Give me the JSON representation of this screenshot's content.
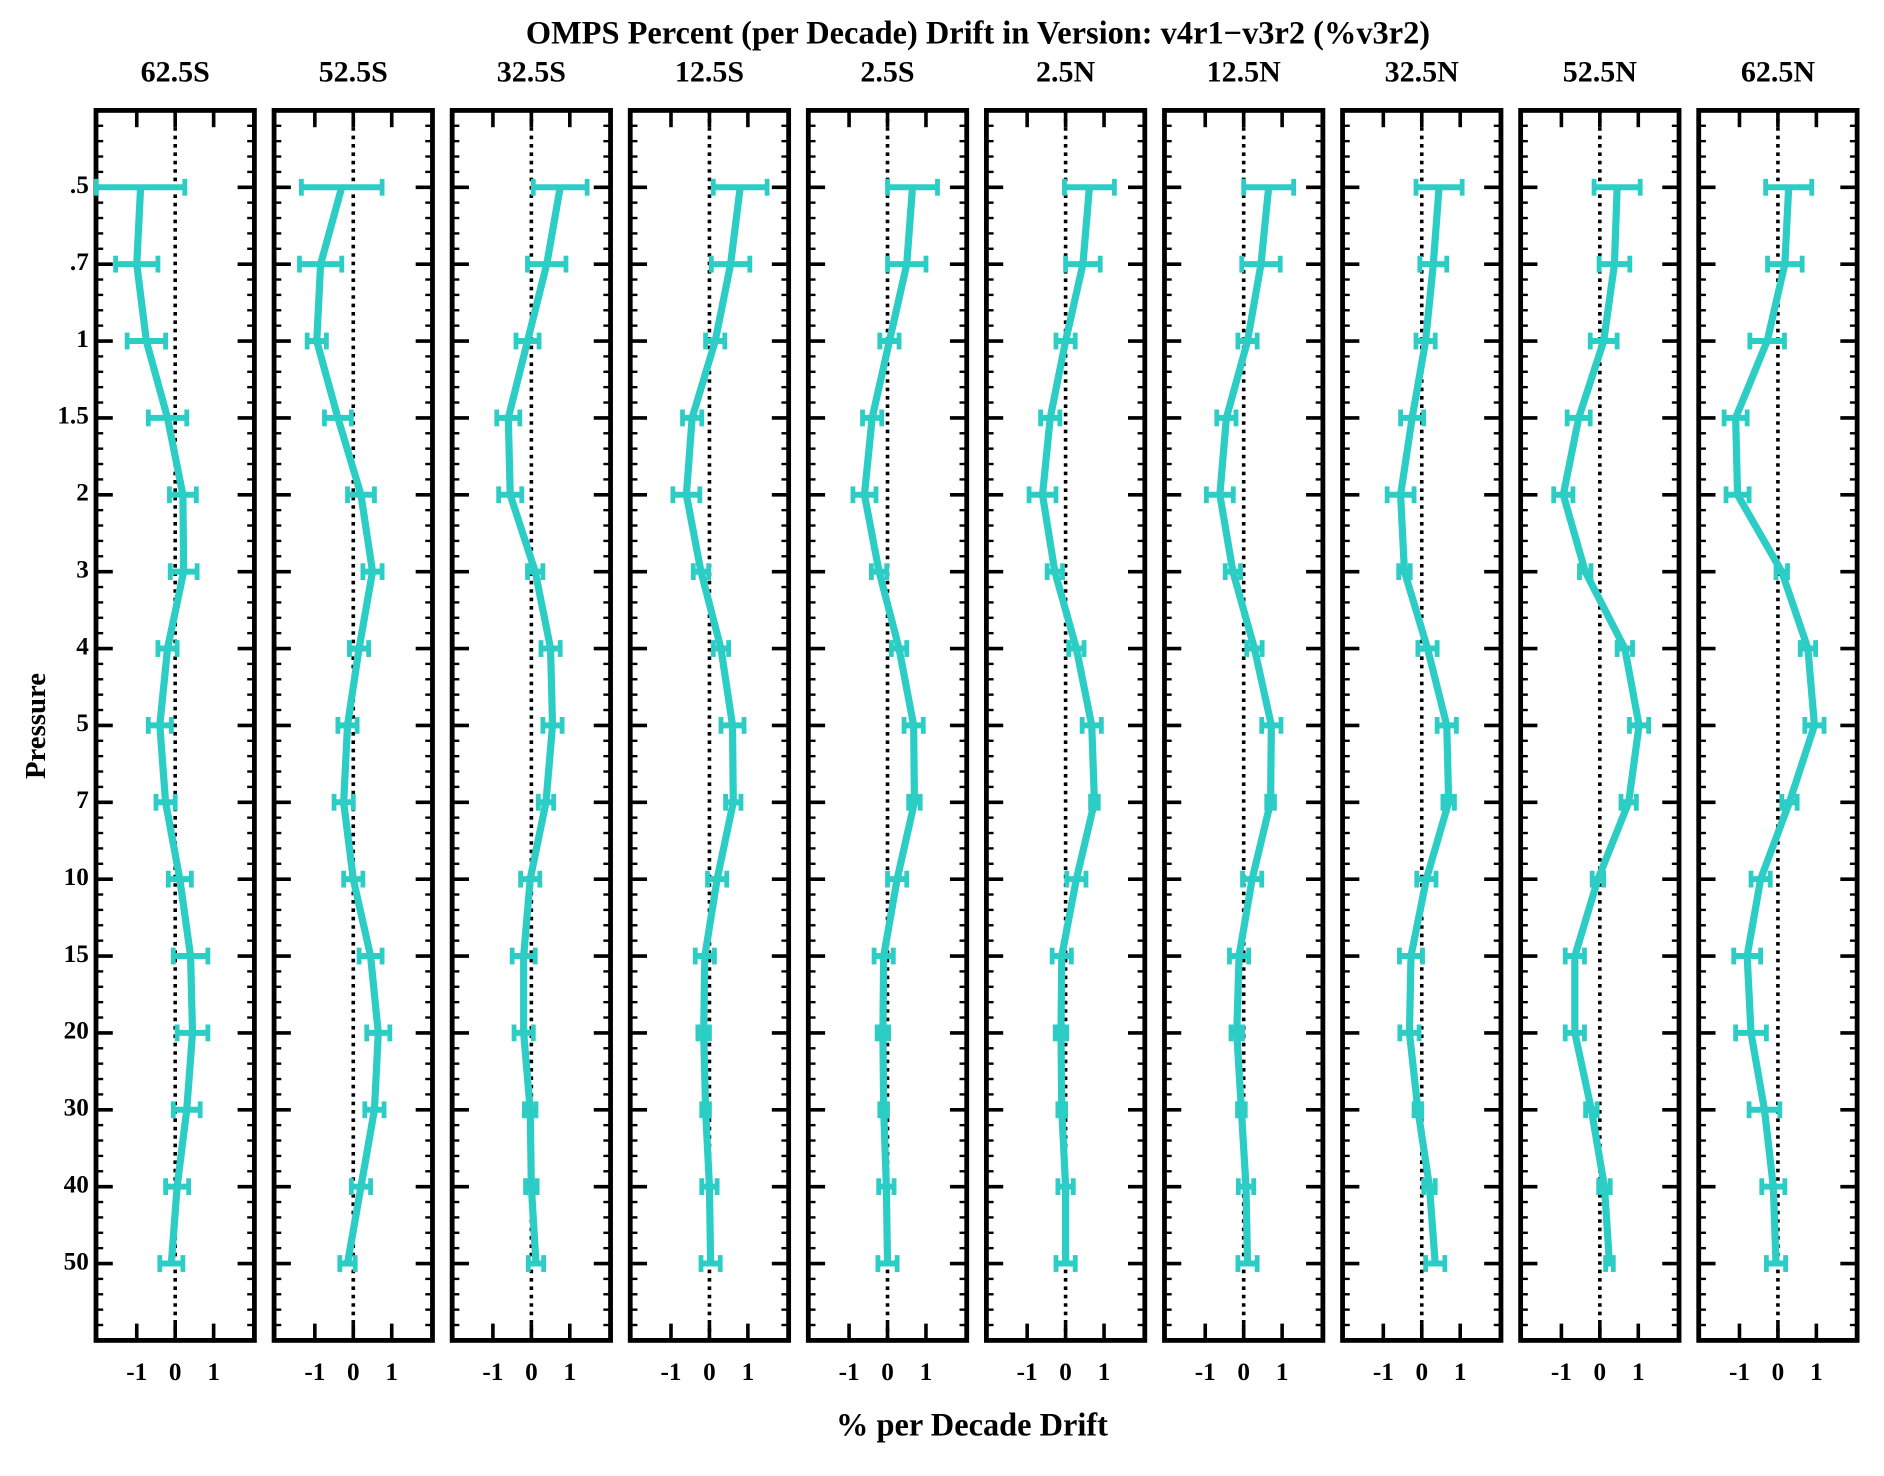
{
  "title": "OMPS Percent (per Decade) Drift in Version: v4r1−v3r2 (%v3r2)",
  "xlabel": "% per Decade Drift",
  "ylabel": "Pressure",
  "categories": [
    ".5",
    ".7",
    "1",
    "1.5",
    "2",
    "3",
    "4",
    "5",
    "7",
    "10",
    "15",
    "20",
    "30",
    "40",
    "50"
  ],
  "chart_data": [
    {
      "type": "profile",
      "title": "62.5S",
      "color": "#2ccdc4",
      "xlim": [
        -2.06,
        2.06
      ],
      "xticks": [
        -1,
        0,
        1
      ],
      "values": [
        -0.9,
        -1.0,
        -0.75,
        -0.2,
        0.2,
        0.22,
        -0.2,
        -0.4,
        -0.25,
        0.12,
        0.4,
        0.45,
        0.3,
        0.05,
        -0.1
      ],
      "errors": [
        1.15,
        0.55,
        0.5,
        0.5,
        0.35,
        0.35,
        0.25,
        0.3,
        0.25,
        0.3,
        0.45,
        0.4,
        0.35,
        0.3,
        0.3
      ]
    },
    {
      "type": "profile",
      "title": "52.5S",
      "color": "#2ccdc4",
      "xlim": [
        -2.06,
        2.06
      ],
      "xticks": [
        -1,
        0,
        1
      ],
      "values": [
        -0.3,
        -0.85,
        -0.95,
        -0.4,
        0.2,
        0.5,
        0.15,
        -0.15,
        -0.25,
        0,
        0.45,
        0.65,
        0.55,
        0.2,
        -0.15
      ],
      "errors": [
        1.05,
        0.55,
        0.25,
        0.35,
        0.35,
        0.25,
        0.25,
        0.25,
        0.25,
        0.25,
        0.3,
        0.3,
        0.25,
        0.25,
        0.2
      ]
    },
    {
      "type": "profile",
      "title": "32.5S",
      "color": "#2ccdc4",
      "xlim": [
        -2.06,
        2.06
      ],
      "xticks": [
        -1,
        0,
        1
      ],
      "values": [
        0.75,
        0.4,
        -0.1,
        -0.6,
        -0.55,
        0.1,
        0.5,
        0.55,
        0.38,
        -0.03,
        -0.2,
        -0.2,
        -0.03,
        0,
        0.12
      ],
      "errors": [
        0.7,
        0.5,
        0.3,
        0.3,
        0.3,
        0.2,
        0.25,
        0.25,
        0.2,
        0.25,
        0.3,
        0.25,
        0.15,
        0.15,
        0.2
      ]
    },
    {
      "type": "profile",
      "title": "12.5S",
      "color": "#2ccdc4",
      "xlim": [
        -2.06,
        2.06
      ],
      "xticks": [
        -1,
        0,
        1
      ],
      "values": [
        0.8,
        0.55,
        0.15,
        -0.45,
        -0.6,
        -0.22,
        0.3,
        0.6,
        0.62,
        0.2,
        -0.12,
        -0.15,
        -0.1,
        0,
        0.03
      ],
      "errors": [
        0.7,
        0.5,
        0.25,
        0.25,
        0.35,
        0.2,
        0.2,
        0.3,
        0.2,
        0.25,
        0.25,
        0.15,
        0.1,
        0.2,
        0.25
      ]
    },
    {
      "type": "profile",
      "title": "2.5S",
      "color": "#2ccdc4",
      "xlim": [
        -2.06,
        2.06
      ],
      "xticks": [
        -1,
        0,
        1
      ],
      "values": [
        0.65,
        0.5,
        0.05,
        -0.4,
        -0.6,
        -0.22,
        0.3,
        0.68,
        0.7,
        0.25,
        -0.1,
        -0.12,
        -0.1,
        -0.03,
        0
      ],
      "errors": [
        0.65,
        0.5,
        0.25,
        0.25,
        0.3,
        0.2,
        0.2,
        0.25,
        0.15,
        0.25,
        0.25,
        0.15,
        0.1,
        0.2,
        0.25
      ]
    },
    {
      "type": "profile",
      "title": "2.5N",
      "color": "#2ccdc4",
      "xlim": [
        -2.06,
        2.06
      ],
      "xticks": [
        -1,
        0,
        1
      ],
      "values": [
        0.62,
        0.45,
        0,
        -0.4,
        -0.6,
        -0.28,
        0.28,
        0.68,
        0.75,
        0.28,
        -0.1,
        -0.12,
        -0.1,
        0,
        0
      ],
      "errors": [
        0.65,
        0.45,
        0.25,
        0.25,
        0.35,
        0.2,
        0.2,
        0.25,
        0.1,
        0.25,
        0.25,
        0.15,
        0.1,
        0.2,
        0.25
      ]
    },
    {
      "type": "profile",
      "title": "12.5N",
      "color": "#2ccdc4",
      "xlim": [
        -2.06,
        2.06
      ],
      "xticks": [
        -1,
        0,
        1
      ],
      "values": [
        0.65,
        0.45,
        0.1,
        -0.45,
        -0.62,
        -0.28,
        0.28,
        0.72,
        0.7,
        0.22,
        -0.12,
        -0.18,
        -0.06,
        0.06,
        0.1
      ],
      "errors": [
        0.65,
        0.5,
        0.25,
        0.25,
        0.35,
        0.2,
        0.2,
        0.25,
        0.1,
        0.25,
        0.25,
        0.15,
        0.1,
        0.2,
        0.25
      ]
    },
    {
      "type": "profile",
      "title": "32.5N",
      "color": "#2ccdc4",
      "xlim": [
        -2.06,
        2.06
      ],
      "xticks": [
        -1,
        0,
        1
      ],
      "values": [
        0.45,
        0.3,
        0.1,
        -0.25,
        -0.55,
        -0.45,
        0.15,
        0.65,
        0.7,
        0.12,
        -0.28,
        -0.32,
        -0.1,
        0.2,
        0.35
      ],
      "errors": [
        0.6,
        0.35,
        0.25,
        0.3,
        0.35,
        0.15,
        0.25,
        0.25,
        0.15,
        0.25,
        0.3,
        0.25,
        0.1,
        0.15,
        0.25
      ]
    },
    {
      "type": "profile",
      "title": "52.5N",
      "color": "#2ccdc4",
      "xlim": [
        -2.06,
        2.06
      ],
      "xticks": [
        -1,
        0,
        1
      ],
      "values": [
        0.45,
        0.38,
        0.1,
        -0.55,
        -0.95,
        -0.38,
        0.65,
        1.02,
        0.75,
        -0.05,
        -0.65,
        -0.65,
        -0.22,
        0.12,
        0.25
      ],
      "errors": [
        0.6,
        0.4,
        0.35,
        0.3,
        0.25,
        0.15,
        0.2,
        0.25,
        0.2,
        0.15,
        0.25,
        0.25,
        0.15,
        0.15,
        0.1
      ]
    },
    {
      "type": "profile",
      "title": "62.5N",
      "color": "#2ccdc4",
      "xlim": [
        -2.06,
        2.06
      ],
      "xticks": [
        -1,
        0,
        1
      ],
      "values": [
        0.28,
        0.18,
        -0.28,
        -1.1,
        -1.05,
        0.1,
        0.78,
        0.95,
        0.3,
        -0.45,
        -0.8,
        -0.7,
        -0.35,
        -0.12,
        -0.05
      ],
      "errors": [
        0.6,
        0.45,
        0.45,
        0.3,
        0.3,
        0.15,
        0.2,
        0.25,
        0.2,
        0.25,
        0.35,
        0.4,
        0.4,
        0.3,
        0.25
      ]
    }
  ]
}
